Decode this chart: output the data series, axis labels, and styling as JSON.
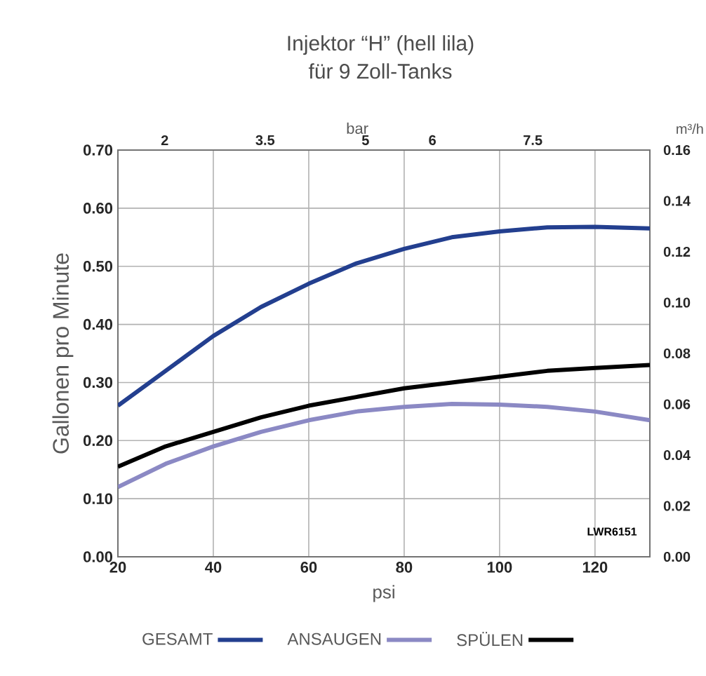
{
  "chart_data": {
    "type": "line",
    "title": "Injektor “H” (hell lila)",
    "subtitle": "für 9 Zoll-Tanks",
    "xlabel": "psi",
    "ylabel": "Gallonen pro Minute",
    "x2label": "bar",
    "y2label": "m³/h",
    "x": [
      20,
      30,
      40,
      50,
      60,
      70,
      80,
      90,
      100,
      110,
      120,
      131.5
    ],
    "series": [
      {
        "name": "GESAMT",
        "color": "#233f8f",
        "values": [
          0.26,
          0.32,
          0.38,
          0.43,
          0.47,
          0.505,
          0.53,
          0.55,
          0.56,
          0.567,
          0.568,
          0.565
        ]
      },
      {
        "name": "ANSAUGEN",
        "color": "#8b89c4",
        "values": [
          0.12,
          0.16,
          0.19,
          0.215,
          0.235,
          0.25,
          0.258,
          0.263,
          0.262,
          0.258,
          0.25,
          0.235
        ]
      },
      {
        "name": "SPÜLEN",
        "color": "#000000",
        "values": [
          0.155,
          0.19,
          0.215,
          0.24,
          0.26,
          0.275,
          0.29,
          0.3,
          0.31,
          0.32,
          0.325,
          0.33
        ]
      }
    ],
    "xlim": [
      20,
      131.5
    ],
    "xticks": [
      20,
      40,
      60,
      80,
      100,
      120
    ],
    "ylim": [
      0,
      0.7
    ],
    "yticks": [
      {
        "value": 0,
        "label": "0.00"
      },
      {
        "value": 0.1,
        "label": "0.10"
      },
      {
        "value": 0.2,
        "label": "0.20"
      },
      {
        "value": 0.3,
        "label": "0.30"
      },
      {
        "value": 0.4,
        "label": "0.40"
      },
      {
        "value": 0.5,
        "label": "0.50"
      },
      {
        "value": 0.6,
        "label": "0.60"
      },
      {
        "value": 0.7,
        "label": "0.70"
      }
    ],
    "x2lim": [
      1.3,
      9.25
    ],
    "x2ticks": [
      2,
      3.5,
      5,
      6,
      7.5
    ],
    "y2lim": [
      0,
      0.16
    ],
    "y2ticks": [
      {
        "value": 0,
        "label": "0.00"
      },
      {
        "value": 0.02,
        "label": "0.02"
      },
      {
        "value": 0.04,
        "label": "0.04"
      },
      {
        "value": 0.06,
        "label": "0.06"
      },
      {
        "value": 0.08,
        "label": "0.08"
      },
      {
        "value": 0.1,
        "label": "0.10"
      },
      {
        "value": 0.12,
        "label": "0.12"
      },
      {
        "value": 0.14,
        "label": "0.14"
      },
      {
        "value": 0.16,
        "label": "0.16"
      }
    ],
    "annotations": [
      "LWR6151"
    ],
    "grid": true,
    "legend": "bottom",
    "line_style": "solid",
    "marker": "none"
  }
}
